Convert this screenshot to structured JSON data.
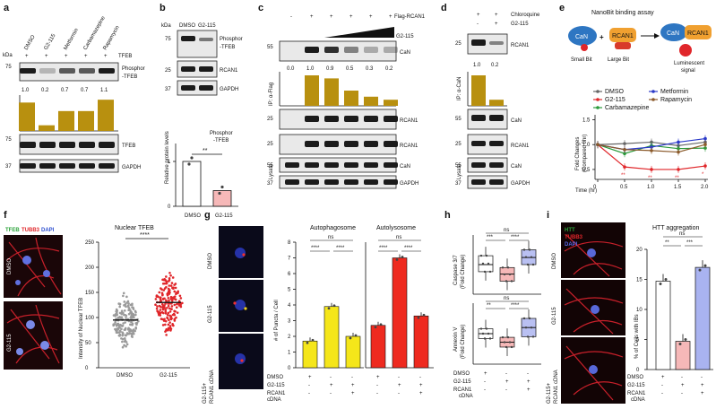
{
  "panels": {
    "a": {
      "letter": "a",
      "lanes": [
        "DMSO",
        "G2-115",
        "Metformin",
        "Carbamazepine",
        "Rapamycin"
      ],
      "tfeb_row": [
        "+",
        "+",
        "+",
        "+",
        "+"
      ],
      "tfeb_row_label": "TFEB",
      "kda_label": "kDa",
      "mw": [
        "75",
        "75",
        "37"
      ],
      "blot_labels": [
        "Phosphor\n-TFEB",
        "TFEB",
        "GAPDH"
      ],
      "ratios": [
        "1.0",
        "0.2",
        "0.7",
        "0.7",
        "1.1"
      ],
      "ratio_values": [
        1.0,
        0.2,
        0.7,
        0.7,
        1.1
      ]
    },
    "b": {
      "letter": "b",
      "lanes": [
        "DMSO",
        "G2-115"
      ],
      "kda_label": "kDa",
      "mw": [
        "75",
        "25",
        "37"
      ],
      "blot_labels": [
        "Phosphor\n-TFEB",
        "RCAN1",
        "GAPDH"
      ],
      "chart_title": "Phosphor\n-TFEB",
      "ylabel": "Relative protein levels",
      "yticks": [
        "0",
        "1"
      ],
      "sig": "**",
      "categories": [
        "DMSO",
        "G2-115"
      ],
      "values": [
        1.0,
        0.35
      ]
    },
    "c": {
      "letter": "c",
      "top_label": "Flag-RCAN1",
      "plus_row": [
        "-",
        "+",
        "+",
        "+",
        "+",
        "+"
      ],
      "drug_label": "G2-115",
      "mw": [
        "55",
        "25",
        "25",
        "55",
        "37"
      ],
      "blot_labels": [
        "CaN",
        "RCAN1",
        "RCAN1",
        "CaN",
        "GAPDH"
      ],
      "ratios": [
        "0.0",
        "1.0",
        "0.9",
        "0.5",
        "0.3",
        "0.2"
      ],
      "ratio_values": [
        0.0,
        1.0,
        0.9,
        0.5,
        0.3,
        0.2
      ],
      "ip_label": "IP: α-Flag",
      "lysate_label": "Lysate"
    },
    "d": {
      "letter": "d",
      "rows": [
        {
          "label": "Chloroquine",
          "signs": [
            "+",
            "+"
          ]
        },
        {
          "label": "G2-115",
          "signs": [
            "-",
            "+"
          ]
        }
      ],
      "mw": [
        "25",
        "55",
        "25",
        "55",
        "37"
      ],
      "blot_labels": [
        "RCAN1",
        "CaN",
        "RCAN1",
        "CaN",
        "GAPDH"
      ],
      "ratios": [
        "1.0",
        "0.2"
      ],
      "ratio_values": [
        1.0,
        0.2
      ],
      "ip_label": "IP: α-CaN",
      "lysate_label": "Lysate"
    },
    "e": {
      "letter": "e",
      "title": "NanoBit binding assay",
      "can": "CaN",
      "rcan1": "RCAN1",
      "small_bit": "Small Bit",
      "large_bit": "Large Bit",
      "lum": "Luminescent\nsignal",
      "ylabel": "Fold Changes\n(Compared 0hr)",
      "xlabel": "Time (hr)",
      "xticks": [
        "0",
        "0.5",
        "1.0",
        "1.5",
        "2.0"
      ],
      "yticks": [
        "0.5",
        "1.0",
        "1.5"
      ],
      "sig_marks": [
        "**",
        "**",
        "**",
        "*"
      ]
    },
    "f": {
      "letter": "f",
      "stain": [
        "TFEB",
        "TUBB3",
        "DAPI"
      ],
      "img_labels": [
        "DMSO",
        "G2-115"
      ],
      "title": "Nuclear TFEB",
      "ylabel": "Intensity of Nuclear TFEB",
      "yticks": [
        "0",
        "50",
        "100",
        "150",
        "200",
        "250"
      ],
      "sig": "****",
      "categories": [
        "DMSO",
        "G2-115"
      ]
    },
    "g": {
      "letter": "g",
      "img_labels": [
        "DMSO",
        "G2-115",
        "G2-115+\nRCAN1 cDNA"
      ],
      "title_a": "Autophagosome",
      "title_b": "Autolysosome",
      "ylabel": "# of Puncta / Cell",
      "yticks": [
        "0",
        "1",
        "2",
        "3",
        "4",
        "5",
        "6",
        "7",
        "8"
      ],
      "sig": [
        "ns",
        "****",
        "****",
        "ns",
        "****",
        "****"
      ],
      "rows": [
        {
          "label": "DMSO",
          "signs": [
            "+",
            "-",
            "-",
            "+",
            "-",
            "-"
          ]
        },
        {
          "label": "G2-115",
          "signs": [
            "-",
            "+",
            "+",
            "-",
            "+",
            "+"
          ]
        },
        {
          "label": "RCAN1\ncDNA",
          "signs": [
            "-",
            "-",
            "+",
            "-",
            "-",
            "+"
          ]
        }
      ]
    },
    "h": {
      "letter": "h",
      "ylabel_top": "Caspase 3/7\n(Fold Change)",
      "ylabel_bot": "Annexin V\n(Fold Change)",
      "sig_top": [
        "ns",
        "***",
        "****"
      ],
      "sig_bot": [
        "ns",
        "**",
        "****"
      ],
      "rows": [
        {
          "label": "DMSO",
          "signs": [
            "+",
            "-",
            "-"
          ]
        },
        {
          "label": "G2-115",
          "signs": [
            "-",
            "+",
            "+"
          ]
        },
        {
          "label": "RCAN1\ncDNA",
          "signs": [
            "-",
            "-",
            "+"
          ]
        }
      ]
    },
    "i": {
      "letter": "i",
      "stain": [
        "HTT",
        "TUBB3",
        "DAPI"
      ],
      "img_labels": [
        "DMSO",
        "G2-115",
        "G2-115+\nRCAN1 cDNA"
      ],
      "title": "HTT aggregation",
      "ylabel": "% of Cells with IBs",
      "yticks": [
        "0",
        "5",
        "10",
        "15",
        "20"
      ],
      "sig": [
        "ns",
        "**",
        "***"
      ],
      "rows": [
        {
          "label": "DMSO",
          "signs": [
            "+",
            "-",
            "-"
          ]
        },
        {
          "label": "G2-115",
          "signs": [
            "-",
            "+",
            "+"
          ]
        },
        {
          "label": "RCAN1\ncDNA",
          "signs": [
            "-",
            "-",
            "+"
          ]
        }
      ]
    }
  },
  "chart_data": [
    {
      "type": "bar",
      "title": "",
      "categories": [
        "DMSO",
        "G2-115",
        "Metformin",
        "Carbamazepine",
        "Rapamycin"
      ],
      "values": [
        1.0,
        0.2,
        0.7,
        0.7,
        1.1
      ],
      "color": "#b8900f"
    },
    {
      "type": "bar",
      "title": "Phosphor-TFEB",
      "categories": [
        "DMSO",
        "G2-115"
      ],
      "values": [
        1.0,
        0.35
      ],
      "ylabel": "Relative protein levels",
      "colors": [
        "#ffffff",
        "#f6b8b8"
      ]
    },
    {
      "type": "bar",
      "categories": [
        "1",
        "2",
        "3",
        "4",
        "5",
        "6"
      ],
      "values": [
        0.0,
        1.0,
        0.9,
        0.5,
        0.3,
        0.2
      ],
      "color": "#b8900f"
    },
    {
      "type": "bar",
      "categories": [
        "1",
        "2"
      ],
      "values": [
        1.0,
        0.2
      ],
      "color": "#b8900f"
    },
    {
      "type": "line",
      "x": [
        0,
        0.5,
        1.0,
        1.5,
        2.0
      ],
      "xlabel": "Time (hr)",
      "ylabel": "Fold Changes (Compared 0hr)",
      "ylim": [
        0.3,
        1.6
      ],
      "series": [
        {
          "name": "DMSO",
          "values": [
            1.0,
            1.02,
            1.05,
            0.98,
            1.05
          ],
          "color": "#666666"
        },
        {
          "name": "G2-115",
          "values": [
            1.0,
            0.55,
            0.5,
            0.5,
            0.57
          ],
          "color": "#e0262a"
        },
        {
          "name": "Carbamazepine",
          "values": [
            1.0,
            0.82,
            0.98,
            0.92,
            0.93
          ],
          "color": "#2a9a3a"
        },
        {
          "name": "Metformin",
          "values": [
            1.0,
            0.9,
            0.95,
            1.05,
            1.12
          ],
          "color": "#2a39c8"
        },
        {
          "name": "Rapamycin",
          "values": [
            1.0,
            0.9,
            0.88,
            0.85,
            1.0
          ],
          "color": "#8b5a2b"
        }
      ]
    },
    {
      "type": "bar",
      "title": "Autophagosome",
      "categories": [
        "DMSO",
        "G2-115",
        "G2-115+RCAN1 cDNA"
      ],
      "values": [
        1.7,
        3.9,
        2.0
      ],
      "ylim": [
        0,
        8
      ],
      "color": "#f5e61a"
    },
    {
      "type": "bar",
      "title": "Autolysosome",
      "categories": [
        "DMSO",
        "G2-115",
        "G2-115+RCAN1 cDNA"
      ],
      "values": [
        2.7,
        7.0,
        3.3
      ],
      "ylim": [
        0,
        8
      ],
      "color": "#ee2a1f"
    },
    {
      "type": "bar",
      "title": "HTT aggregation",
      "categories": [
        "DMSO",
        "G2-115",
        "G2-115+RCAN1 cDNA"
      ],
      "values": [
        14.7,
        4.7,
        17.0
      ],
      "ylim": [
        0,
        20
      ],
      "colors": [
        "#ffffff",
        "#f6b8b8",
        "#a9b3f0"
      ]
    }
  ]
}
